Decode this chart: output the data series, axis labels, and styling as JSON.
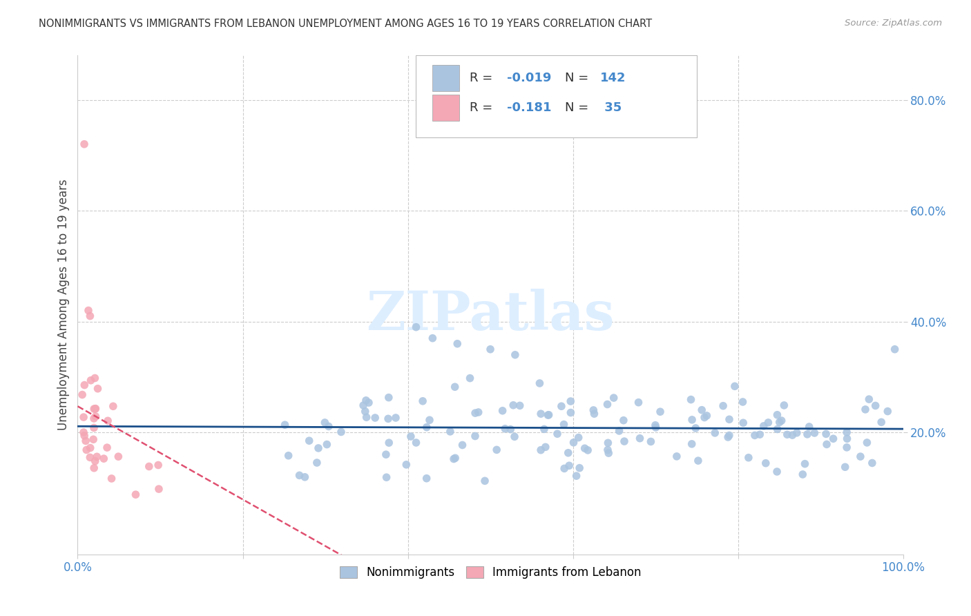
{
  "title": "NONIMMIGRANTS VS IMMIGRANTS FROM LEBANON UNEMPLOYMENT AMONG AGES 16 TO 19 YEARS CORRELATION CHART",
  "source": "Source: ZipAtlas.com",
  "ylabel": "Unemployment Among Ages 16 to 19 years",
  "xlim": [
    0.0,
    1.0
  ],
  "ylim": [
    -0.02,
    0.88
  ],
  "background_color": "#ffffff",
  "grid_color": "#cccccc",
  "blue_color": "#aac4e0",
  "pink_color": "#f4a7b5",
  "blue_line_color": "#1a4f8a",
  "pink_line_color": "#e05070",
  "title_color": "#333333",
  "axis_tick_color": "#4488cc",
  "R_nonimm": -0.019,
  "N_nonimm": 142,
  "R_imm": -0.181,
  "N_imm": 35,
  "watermark_color": "#ddeeff",
  "watermark_text": "ZIPatlas"
}
